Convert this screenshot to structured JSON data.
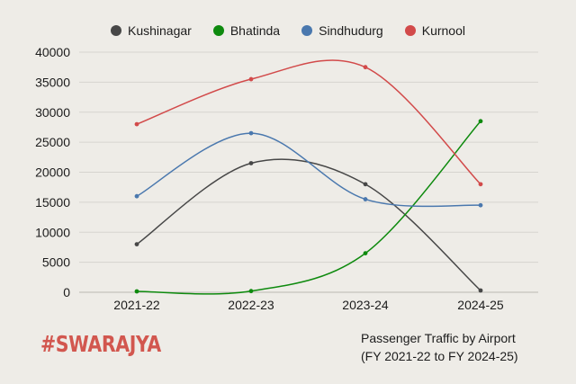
{
  "chart_data": {
    "type": "line",
    "categories": [
      "2021-22",
      "2022-23",
      "2023-24",
      "2024-25"
    ],
    "series": [
      {
        "name": "Kushinagar",
        "color": "#474747",
        "values": [
          8000,
          21500,
          18000,
          300
        ]
      },
      {
        "name": "Bhatinda",
        "color": "#0e8a0e",
        "values": [
          150,
          200,
          6500,
          28500
        ]
      },
      {
        "name": "Sindhudurg",
        "color": "#4a78ae",
        "values": [
          16000,
          26500,
          15500,
          14500
        ]
      },
      {
        "name": "Kurnool",
        "color": "#d24a4a",
        "values": [
          28000,
          35500,
          37500,
          18000
        ]
      }
    ],
    "yticks": [
      "0",
      "5000",
      "10000",
      "15000",
      "20000",
      "25000",
      "30000",
      "35000",
      "40000"
    ],
    "ylim": [
      0,
      40000
    ],
    "grid": true,
    "legend_position": "top-center",
    "smooth": true
  },
  "caption": {
    "line1": "Passenger Traffic by Airport",
    "line2": "(FY 2021-22 to FY 2024-25)"
  },
  "brand": {
    "text": "#SWARAJYA",
    "color": "#d2574f"
  }
}
